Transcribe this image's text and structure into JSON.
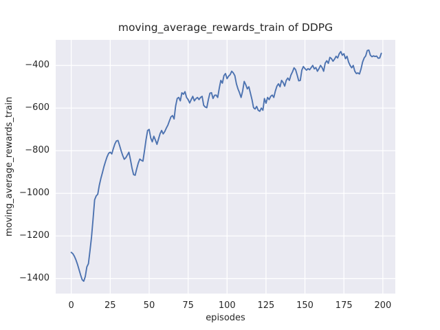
{
  "chart_data": {
    "type": "line",
    "title": "moving_average_rewards_train of DDPG",
    "xlabel": "episodes",
    "ylabel": "moving_average_rewards_train",
    "legend": null,
    "grid": true,
    "style": "seaborn-darkgrid",
    "colors": {
      "line": "#4c72b0",
      "plot_background": "#eaeaf2",
      "gridline": "#ffffff",
      "figure_background": "#ffffff",
      "text": "#262626"
    },
    "xlim": [
      -10,
      208
    ],
    "ylim": [
      -1470,
      -280
    ],
    "xticks": [
      0,
      25,
      50,
      75,
      100,
      125,
      150,
      175,
      200
    ],
    "yticks": [
      -400,
      -600,
      -800,
      -1000,
      -1200,
      -1400
    ],
    "x": [
      0,
      1,
      2,
      3,
      4,
      5,
      6,
      7,
      8,
      9,
      10,
      11,
      12,
      13,
      14,
      15,
      16,
      17,
      18,
      19,
      20,
      21,
      22,
      23,
      24,
      25,
      26,
      27,
      28,
      29,
      30,
      31,
      32,
      33,
      34,
      35,
      36,
      37,
      38,
      39,
      40,
      41,
      42,
      43,
      44,
      45,
      46,
      47,
      48,
      49,
      50,
      51,
      52,
      53,
      54,
      55,
      56,
      57,
      58,
      59,
      60,
      61,
      62,
      63,
      64,
      65,
      66,
      67,
      68,
      69,
      70,
      71,
      72,
      73,
      74,
      75,
      76,
      77,
      78,
      79,
      80,
      81,
      82,
      83,
      84,
      85,
      86,
      87,
      88,
      89,
      90,
      91,
      92,
      93,
      94,
      95,
      96,
      97,
      98,
      99,
      100,
      101,
      102,
      103,
      104,
      105,
      106,
      107,
      108,
      109,
      110,
      111,
      112,
      113,
      114,
      115,
      116,
      117,
      118,
      119,
      120,
      121,
      122,
      123,
      124,
      125,
      126,
      127,
      128,
      129,
      130,
      131,
      132,
      133,
      134,
      135,
      136,
      137,
      138,
      139,
      140,
      141,
      142,
      143,
      144,
      145,
      146,
      147,
      148,
      149,
      150,
      151,
      152,
      153,
      154,
      155,
      156,
      157,
      158,
      159,
      160,
      161,
      162,
      163,
      164,
      165,
      166,
      167,
      168,
      169,
      170,
      171,
      172,
      173,
      174,
      175,
      176,
      177,
      178,
      179,
      180,
      181,
      182,
      183,
      184,
      185,
      186,
      187,
      188,
      189,
      190,
      191,
      192,
      193,
      194,
      195,
      196,
      197,
      198,
      199
    ],
    "series": [
      {
        "name": "moving_average_rewards_train",
        "values": [
          -1277,
          -1283,
          -1295,
          -1312,
          -1333,
          -1358,
          -1383,
          -1405,
          -1412,
          -1390,
          -1345,
          -1330,
          -1270,
          -1205,
          -1120,
          -1030,
          -1012,
          -1004,
          -962,
          -930,
          -903,
          -874,
          -850,
          -828,
          -812,
          -807,
          -815,
          -790,
          -768,
          -754,
          -752,
          -775,
          -800,
          -822,
          -840,
          -833,
          -820,
          -807,
          -842,
          -882,
          -912,
          -915,
          -885,
          -858,
          -839,
          -845,
          -849,
          -800,
          -748,
          -705,
          -700,
          -740,
          -758,
          -732,
          -750,
          -770,
          -745,
          -720,
          -705,
          -721,
          -710,
          -694,
          -680,
          -660,
          -641,
          -635,
          -651,
          -590,
          -555,
          -550,
          -566,
          -528,
          -535,
          -523,
          -550,
          -560,
          -576,
          -560,
          -545,
          -566,
          -556,
          -550,
          -560,
          -550,
          -545,
          -587,
          -595,
          -598,
          -560,
          -530,
          -528,
          -555,
          -540,
          -539,
          -550,
          -507,
          -470,
          -483,
          -448,
          -438,
          -462,
          -450,
          -443,
          -427,
          -435,
          -448,
          -486,
          -510,
          -528,
          -550,
          -520,
          -475,
          -490,
          -510,
          -500,
          -530,
          -560,
          -598,
          -604,
          -592,
          -610,
          -615,
          -600,
          -610,
          -555,
          -577,
          -550,
          -560,
          -545,
          -539,
          -550,
          -520,
          -497,
          -486,
          -500,
          -470,
          -480,
          -497,
          -470,
          -459,
          -470,
          -445,
          -430,
          -411,
          -420,
          -445,
          -472,
          -470,
          -422,
          -405,
          -415,
          -422,
          -415,
          -420,
          -410,
          -400,
          -416,
          -410,
          -427,
          -415,
          -400,
          -410,
          -427,
          -389,
          -378,
          -390,
          -362,
          -368,
          -380,
          -370,
          -357,
          -365,
          -345,
          -335,
          -352,
          -345,
          -368,
          -357,
          -384,
          -400,
          -411,
          -400,
          -427,
          -438,
          -435,
          -440,
          -416,
          -384,
          -365,
          -355,
          -330,
          -328,
          -352,
          -359,
          -355,
          -358,
          -356,
          -366,
          -365,
          -343
        ]
      }
    ]
  }
}
